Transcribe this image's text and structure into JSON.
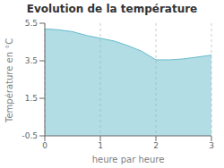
{
  "chart_data": {
    "type": "area",
    "title": "Evolution de la température",
    "xlabel": "heure par heure",
    "ylabel": "Température en °C",
    "x": [
      0,
      0.25,
      0.5,
      0.75,
      1.0,
      1.25,
      1.5,
      1.75,
      2.0,
      2.25,
      2.5,
      2.75,
      3.0
    ],
    "values": [
      5.2,
      5.15,
      5.05,
      4.85,
      4.7,
      4.55,
      4.3,
      4.0,
      3.55,
      3.55,
      3.6,
      3.7,
      3.8
    ],
    "xlim": [
      0,
      3
    ],
    "ylim": [
      -0.5,
      5.5
    ],
    "xticks": [
      0,
      1,
      2,
      3
    ],
    "yticks": [
      -0.5,
      1.5,
      3.5,
      5.5
    ],
    "color": "#66bbcc",
    "grid": "x"
  }
}
